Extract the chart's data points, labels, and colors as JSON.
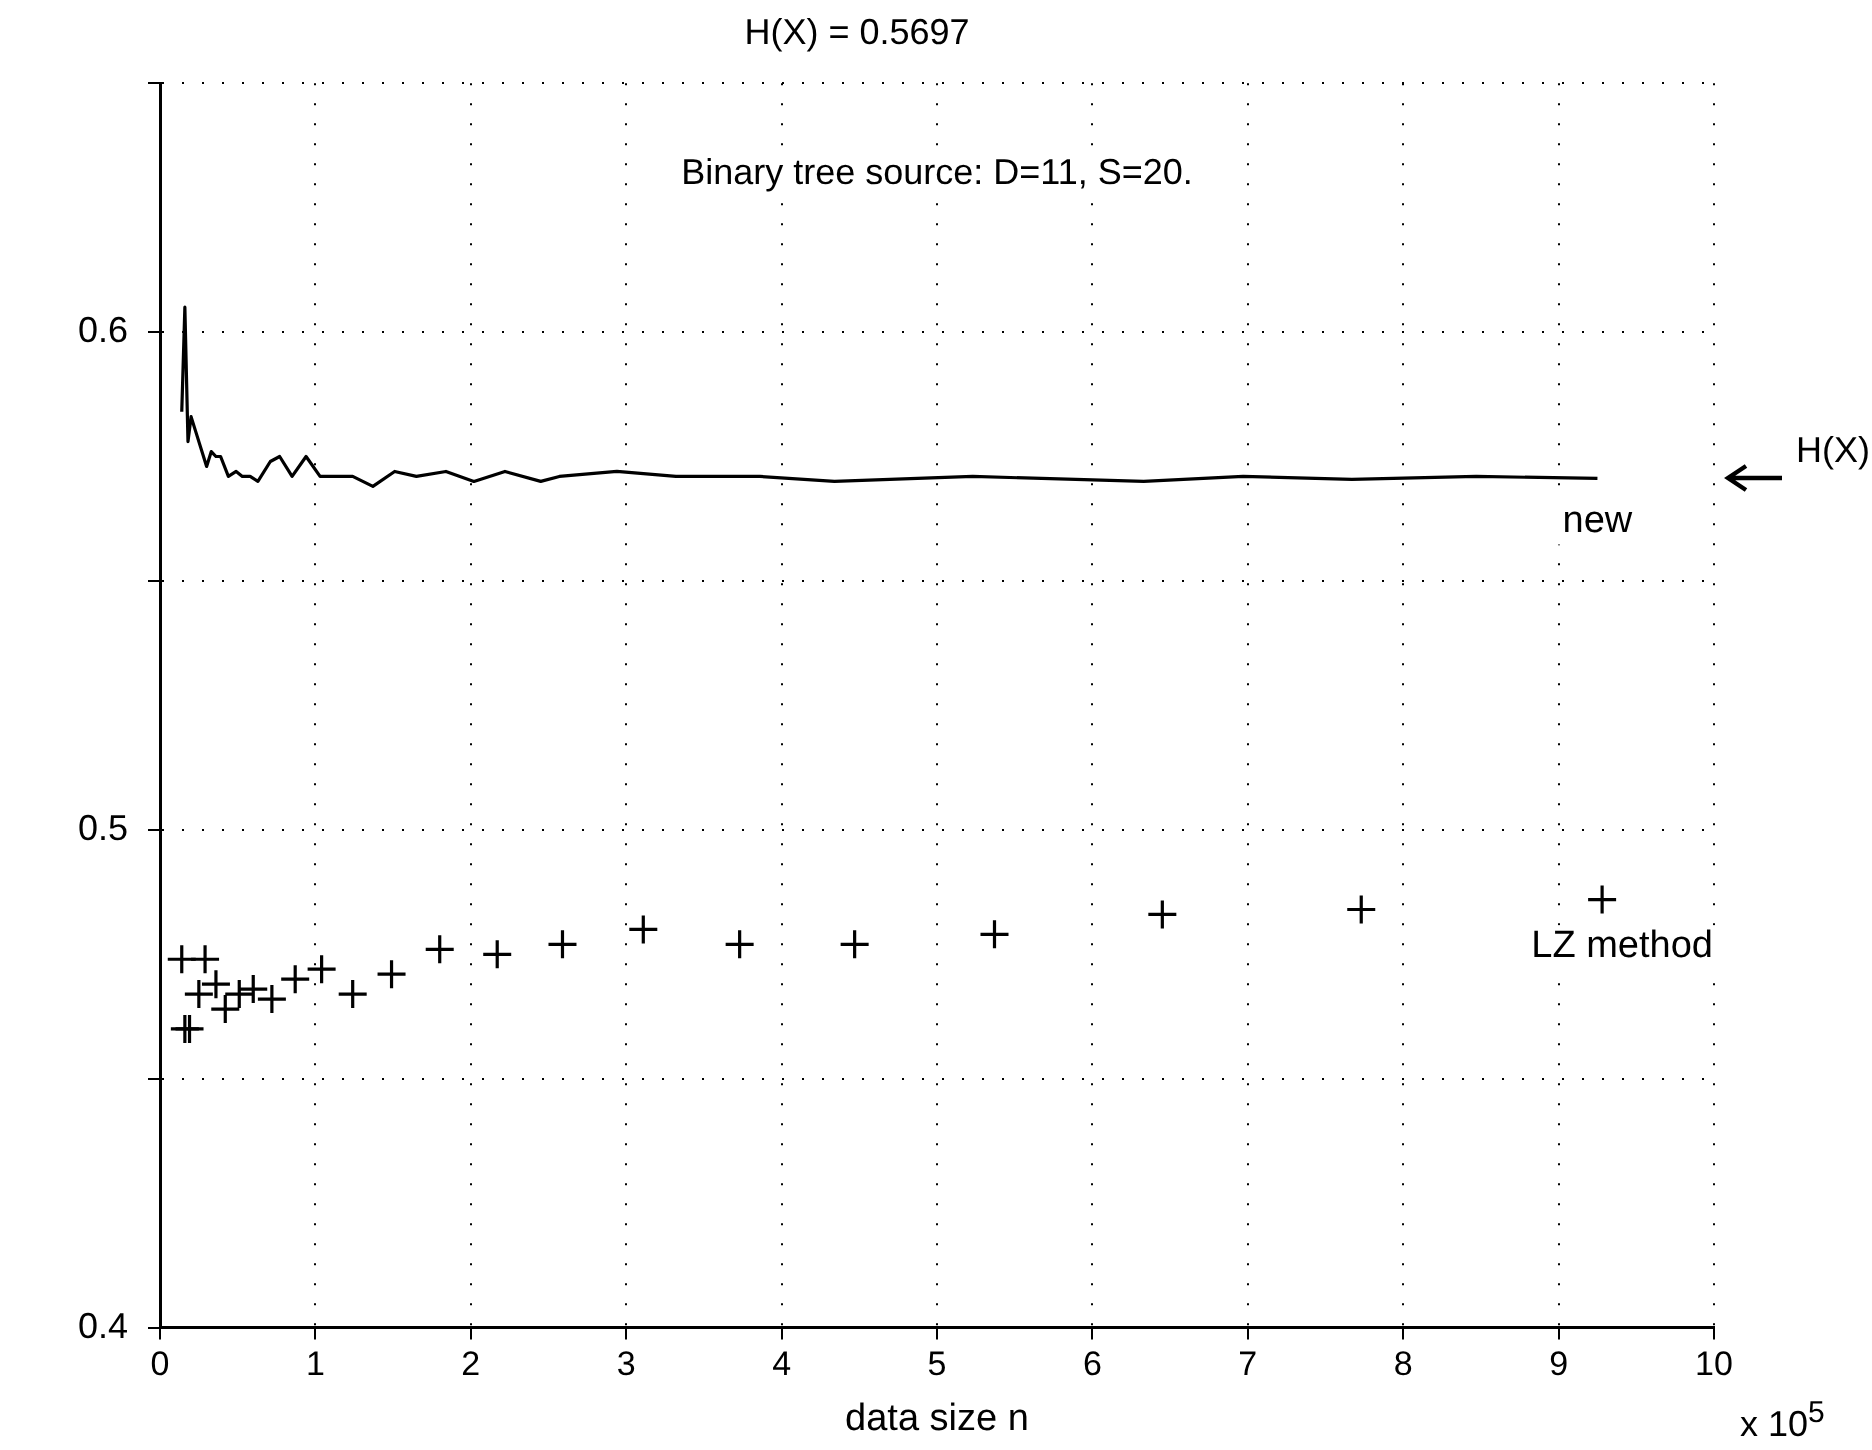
{
  "chart_data": {
    "type": "line",
    "title": "H(X) = 0.5697",
    "xlabel": "data size n",
    "xlim": [
      0,
      10
    ],
    "xticks": [
      0,
      1,
      2,
      3,
      4,
      5,
      6,
      7,
      8,
      9,
      10
    ],
    "ylim": [
      0.4,
      0.65
    ],
    "yticks": [
      0.4,
      {
        "value": 0.45,
        "label": null
      },
      0.5,
      {
        "value": 0.55,
        "label": null
      },
      0.6,
      {
        "value": 0.65,
        "label": null
      }
    ],
    "grid": true,
    "legend": false,
    "annotations": [
      "Binary tree source: D=11, S=20.",
      "x 10$^{5}$",
      "H(X)"
    ],
    "series": [
      {
        "name": "new",
        "color": "#000000",
        "marker": "none",
        "x": [
          0.14,
          0.16,
          0.18,
          0.2,
          0.23,
          0.3,
          0.33,
          0.36,
          0.39,
          0.44,
          0.49,
          0.53,
          0.58,
          0.63,
          0.71,
          0.77,
          0.85,
          0.94,
          1.03,
          1.24,
          1.37,
          1.51,
          1.65,
          1.84,
          2.02,
          2.22,
          2.45,
          2.57,
          2.94,
          3.32,
          3.86,
          4.34,
          5.23,
          6.33,
          6.97,
          7.67,
          8.47,
          9.25
        ],
        "values": [
          0.584,
          0.605,
          0.578,
          0.583,
          0.58,
          0.573,
          0.576,
          0.575,
          0.575,
          0.571,
          0.572,
          0.571,
          0.571,
          0.57,
          0.574,
          0.575,
          0.571,
          0.575,
          0.571,
          0.571,
          0.569,
          0.572,
          0.571,
          0.572,
          0.57,
          0.572,
          0.57,
          0.571,
          0.572,
          0.571,
          0.571,
          0.57,
          0.571,
          0.57,
          0.571,
          0.5704,
          0.571,
          0.5706
        ]
      },
      {
        "name": "LZ method",
        "type": "scatter",
        "color": "#000000",
        "marker": "cross",
        "x": [
          0.14,
          0.16,
          0.19,
          0.25,
          0.29,
          0.36,
          0.42,
          0.51,
          0.6,
          0.72,
          0.87,
          1.04,
          1.24,
          1.49,
          1.8,
          2.17,
          2.59,
          3.11,
          3.73,
          4.47,
          5.37,
          6.45,
          7.73,
          9.28
        ],
        "values": [
          0.474,
          0.46,
          0.46,
          0.467,
          0.474,
          0.469,
          0.464,
          0.467,
          0.468,
          0.466,
          0.47,
          0.472,
          0.467,
          0.471,
          0.476,
          0.475,
          0.477,
          0.48,
          0.477,
          0.477,
          0.479,
          0.483,
          0.484,
          0.486
        ]
      }
    ]
  }
}
